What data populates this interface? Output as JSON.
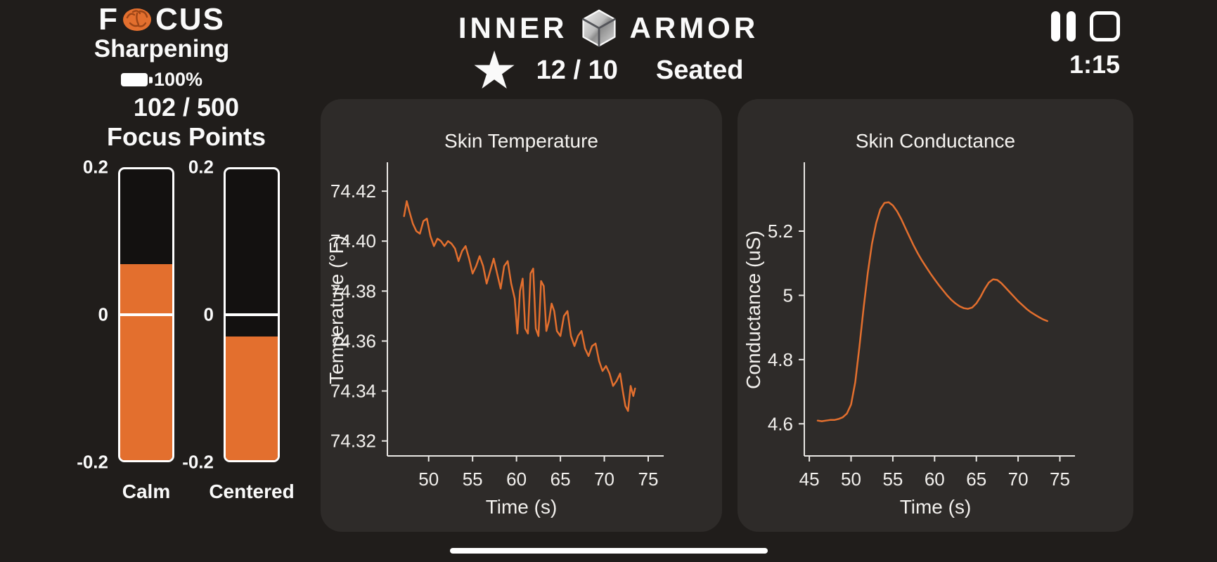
{
  "colors": {
    "background": "#201d1b",
    "panel": "#2e2b29",
    "accent": "#e36f2e",
    "text": "#fafafa"
  },
  "header": {
    "focus": {
      "logo_f": "F",
      "logo_rest": "CUS",
      "subtitle": "Sharpening",
      "battery": "100%"
    },
    "brand": {
      "left": "INNER",
      "right": "ARMOR"
    },
    "session": {
      "score": "12 / 10",
      "posture": "Seated"
    },
    "timer": "1:15"
  },
  "icons": {
    "star_glyph": "★"
  },
  "focus_points": {
    "value": "102 / 500",
    "label": "Focus Points"
  },
  "gauges": {
    "scale_top": "0.2",
    "scale_zero": "0",
    "scale_bottom": "-0.2",
    "min": -0.2,
    "max": 0.2,
    "items": [
      {
        "label": "Calm",
        "value": 0.07
      },
      {
        "label": "Centered",
        "value": -0.03
      }
    ]
  },
  "chart_data": [
    {
      "type": "line",
      "title": "Skin Temperature",
      "xlabel": "Time (s)",
      "ylabel": "Temperature (°F)",
      "xlim": [
        45.3,
        75.8
      ],
      "ylim": [
        74.314,
        74.431
      ],
      "xticks": [
        "50",
        "55",
        "60",
        "65",
        "70",
        "75"
      ],
      "yticks": [
        "74.32",
        "74.34",
        "74.36",
        "74.38",
        "74.40",
        "74.42"
      ],
      "grid": false,
      "color": "#e36f2e",
      "x": [
        47.2,
        47.5,
        47.8,
        48.2,
        48.6,
        49.0,
        49.4,
        49.8,
        50.2,
        50.6,
        51.0,
        51.4,
        51.8,
        52.2,
        52.6,
        53.0,
        53.4,
        53.8,
        54.2,
        54.6,
        55.0,
        55.4,
        55.8,
        56.2,
        56.6,
        57.0,
        57.4,
        57.8,
        58.2,
        58.6,
        59.0,
        59.4,
        59.8,
        60.1,
        60.4,
        60.7,
        61.0,
        61.3,
        61.6,
        61.9,
        62.2,
        62.5,
        62.8,
        63.1,
        63.4,
        63.7,
        64.0,
        64.3,
        64.6,
        65.0,
        65.4,
        65.8,
        66.2,
        66.6,
        67.0,
        67.4,
        67.8,
        68.2,
        68.6,
        69.0,
        69.4,
        69.8,
        70.2,
        70.6,
        71.0,
        71.4,
        71.8,
        72.1,
        72.4,
        72.7,
        73.0,
        73.3,
        73.5
      ],
      "y": [
        74.41,
        74.416,
        74.412,
        74.407,
        74.404,
        74.403,
        74.408,
        74.409,
        74.402,
        74.398,
        74.401,
        74.4,
        74.398,
        74.4,
        74.399,
        74.397,
        74.392,
        74.396,
        74.398,
        74.393,
        74.387,
        74.39,
        74.394,
        74.39,
        74.383,
        74.388,
        74.393,
        74.387,
        74.381,
        74.39,
        74.392,
        74.383,
        74.377,
        74.363,
        74.38,
        74.385,
        74.365,
        74.363,
        74.387,
        74.389,
        74.365,
        74.362,
        74.384,
        74.382,
        74.364,
        74.368,
        74.375,
        74.372,
        74.364,
        74.362,
        74.37,
        74.372,
        74.362,
        74.358,
        74.362,
        74.364,
        74.357,
        74.354,
        74.358,
        74.359,
        74.352,
        74.348,
        74.35,
        74.347,
        74.342,
        74.344,
        74.347,
        74.34,
        74.334,
        74.332,
        74.342,
        74.338,
        74.341
      ]
    },
    {
      "type": "line",
      "title": "Skin Conductance",
      "xlabel": "Time (s)",
      "ylabel": "Conductance (uS)",
      "xlim": [
        44.4,
        75.8
      ],
      "ylim": [
        4.5,
        5.41
      ],
      "xticks": [
        "45",
        "50",
        "55",
        "60",
        "65",
        "70",
        "75"
      ],
      "yticks": [
        "4.6",
        "4.8",
        "5",
        "5.2"
      ],
      "grid": false,
      "color": "#e36f2e",
      "x": [
        46.0,
        46.5,
        47.0,
        47.5,
        48.0,
        48.5,
        49.0,
        49.5,
        50.0,
        50.5,
        51.0,
        51.5,
        52.0,
        52.5,
        53.0,
        53.5,
        54.0,
        54.5,
        55.0,
        55.5,
        56.0,
        56.5,
        57.0,
        57.5,
        58.0,
        58.5,
        59.0,
        59.5,
        60.0,
        60.5,
        61.0,
        61.5,
        62.0,
        62.5,
        63.0,
        63.5,
        64.0,
        64.5,
        65.0,
        65.5,
        66.0,
        66.5,
        67.0,
        67.5,
        68.0,
        68.5,
        69.0,
        69.5,
        70.0,
        70.5,
        71.0,
        71.5,
        72.0,
        72.5,
        73.0,
        73.5
      ],
      "y": [
        4.61,
        4.608,
        4.61,
        4.612,
        4.612,
        4.615,
        4.62,
        4.632,
        4.66,
        4.73,
        4.84,
        4.96,
        5.07,
        5.16,
        5.225,
        5.268,
        5.288,
        5.29,
        5.28,
        5.262,
        5.238,
        5.21,
        5.182,
        5.155,
        5.13,
        5.108,
        5.088,
        5.068,
        5.05,
        5.032,
        5.016,
        5.0,
        4.986,
        4.975,
        4.966,
        4.96,
        4.958,
        4.962,
        4.975,
        4.995,
        5.02,
        5.04,
        5.05,
        5.048,
        5.038,
        5.024,
        5.01,
        4.996,
        4.982,
        4.97,
        4.958,
        4.948,
        4.94,
        4.932,
        4.925,
        4.92
      ]
    }
  ]
}
